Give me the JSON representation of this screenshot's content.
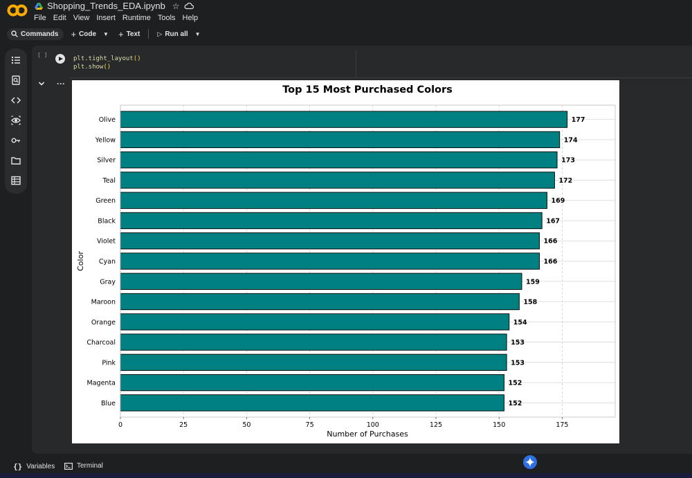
{
  "header": {
    "notebook_title": "Shopping_Trends_EDA.ipynb",
    "menu": [
      "File",
      "Edit",
      "View",
      "Insert",
      "Runtime",
      "Tools",
      "Help"
    ]
  },
  "toolbar": {
    "commands_label": "Commands",
    "code_label": "Code",
    "text_label": "Text",
    "run_all_label": "Run all"
  },
  "cell": {
    "bracket": "[ ]",
    "code_line1_fn": "plt.tight_layout",
    "code_line1_paren": "()",
    "code_line2_fn": "plt.show",
    "code_line2_paren": "()"
  },
  "bottom": {
    "variables_label": "Variables",
    "terminal_label": "Terminal"
  },
  "colors": {
    "bar_fill": "#008080",
    "bar_edge": "#000000"
  },
  "chart_data": {
    "type": "bar",
    "orientation": "horizontal",
    "title": "Top 15 Most Purchased Colors",
    "xlabel": "Number of Purchases",
    "ylabel": "Color",
    "categories": [
      "Olive",
      "Yellow",
      "Silver",
      "Teal",
      "Green",
      "Black",
      "Violet",
      "Cyan",
      "Gray",
      "Maroon",
      "Orange",
      "Charcoal",
      "Pink",
      "Magenta",
      "Blue"
    ],
    "values": [
      177,
      174,
      173,
      172,
      169,
      167,
      166,
      166,
      159,
      158,
      154,
      153,
      153,
      152,
      152
    ],
    "xlim": [
      0,
      196
    ],
    "xticks": [
      0,
      25,
      50,
      75,
      100,
      125,
      150,
      175
    ],
    "grid": true,
    "data_labels": true
  }
}
